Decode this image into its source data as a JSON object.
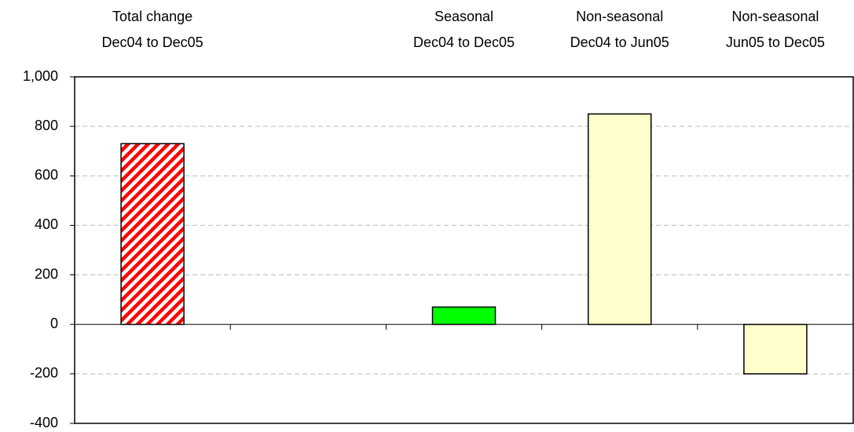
{
  "chart_data": {
    "type": "bar",
    "categories": [
      [
        "Total change",
        "Dec04 to Dec05"
      ],
      null,
      [
        "Seasonal",
        "Dec04 to Dec05"
      ],
      [
        "Non-seasonal",
        "Dec04 to Jun05"
      ],
      [
        "Non-seasonal",
        "Jun05 to Dec05"
      ]
    ],
    "values": [
      730,
      null,
      70,
      850,
      -200
    ],
    "colors": [
      "#ff0000",
      null,
      "#00ff00",
      "#ffffcc",
      "#ffffcc"
    ],
    "patterns": [
      "hatch",
      null,
      "solid",
      "solid",
      "solid"
    ],
    "ylim": [
      -400,
      1000
    ],
    "yticks": [
      -400,
      -200,
      0,
      200,
      400,
      600,
      800,
      {
        "value": 1000,
        "label": "1,000"
      }
    ],
    "grid": true
  }
}
